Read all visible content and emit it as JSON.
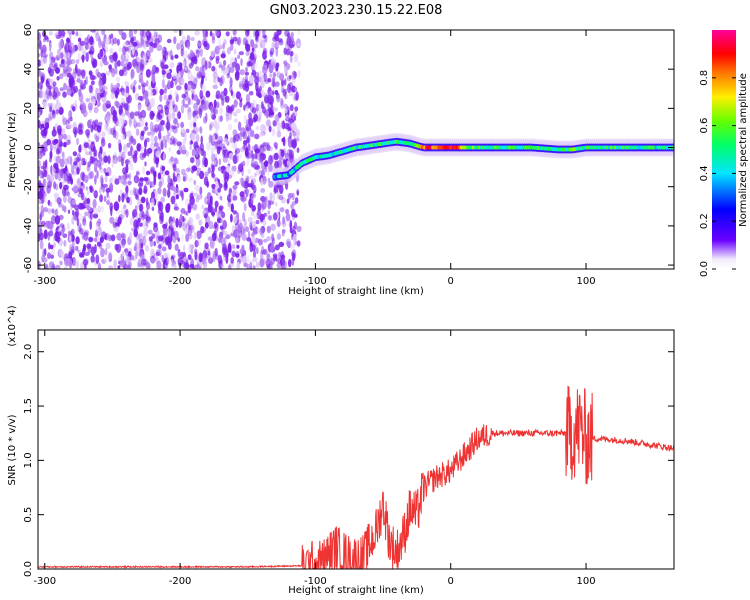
{
  "figure_title": "GN03.2023.230.15.22.E08",
  "colorbar": {
    "label": "Normalized spectral amplitude",
    "ticks": [
      "0.0",
      "0.2",
      "0.4",
      "0.6",
      "0.8"
    ],
    "range": [
      0,
      1
    ]
  },
  "colors": {
    "snr_line": "#ee3333",
    "frame": "#000000"
  },
  "chart_data": [
    {
      "type": "heatmap",
      "title": "",
      "xlabel": "Height of straight line (km)",
      "ylabel": "Frequency (Hz)",
      "xlim": [
        -305,
        165
      ],
      "ylim": [
        -62,
        60
      ],
      "x_ticks": [
        "-300",
        "-200",
        "-100",
        "0",
        "100"
      ],
      "y_ticks": [
        "-60",
        "-40",
        "-20",
        "0",
        "20",
        "40",
        "60"
      ],
      "colormap": "rainbow (violet → blue → cyan → green → yellow → red → magenta)",
      "noise_region": {
        "x_from": -305,
        "x_to": -112,
        "freq_from": -62,
        "freq_to": 60,
        "level": 0.05
      },
      "signal_track": [
        {
          "x": -130,
          "freq": -15,
          "amp": 0.35
        },
        {
          "x": -120,
          "freq": -14,
          "amp": 0.35
        },
        {
          "x": -110,
          "freq": -8,
          "amp": 0.45
        },
        {
          "x": -100,
          "freq": -5,
          "amp": 0.45
        },
        {
          "x": -90,
          "freq": -4,
          "amp": 0.45
        },
        {
          "x": -80,
          "freq": -2,
          "amp": 0.45
        },
        {
          "x": -70,
          "freq": 0,
          "amp": 0.5
        },
        {
          "x": -60,
          "freq": 1,
          "amp": 0.5
        },
        {
          "x": -50,
          "freq": 2,
          "amp": 0.5
        },
        {
          "x": -40,
          "freq": 3,
          "amp": 0.5
        },
        {
          "x": -30,
          "freq": 2,
          "amp": 0.55
        },
        {
          "x": -20,
          "freq": 0,
          "amp": 0.85
        },
        {
          "x": -10,
          "freq": 0,
          "amp": 0.9
        },
        {
          "x": 0,
          "freq": 0,
          "amp": 0.9
        },
        {
          "x": 20,
          "freq": 0,
          "amp": 0.5
        },
        {
          "x": 40,
          "freq": 0,
          "amp": 0.5
        },
        {
          "x": 60,
          "freq": 0,
          "amp": 0.5
        },
        {
          "x": 80,
          "freq": -1,
          "amp": 0.5
        },
        {
          "x": 90,
          "freq": -1,
          "amp": 0.55
        },
        {
          "x": 100,
          "freq": 0,
          "amp": 0.5
        },
        {
          "x": 120,
          "freq": 0,
          "amp": 0.5
        },
        {
          "x": 140,
          "freq": 0,
          "amp": 0.5
        },
        {
          "x": 165,
          "freq": 0,
          "amp": 0.45
        }
      ]
    },
    {
      "type": "line",
      "title": "",
      "xlabel": "Height of straight line (km)",
      "ylabel": "SNR (10 * v/v)",
      "y_multiplier": "(x10^4)",
      "xlim": [
        -305,
        165
      ],
      "ylim": [
        0,
        2.2
      ],
      "x_ticks": [
        "-300",
        "-200",
        "-100",
        "0",
        "100"
      ],
      "y_ticks": [
        "0.0",
        "0.5",
        "1.0",
        "1.5",
        "2.0"
      ],
      "series": [
        {
          "x": [
            -305,
            -250,
            -200,
            -150,
            -110,
            -95,
            -85,
            -75,
            -65,
            -55,
            -50,
            -45,
            -40,
            -35,
            -30,
            -25,
            -20,
            -10,
            0,
            10,
            20,
            30,
            40,
            60,
            80,
            90,
            95,
            100,
            110,
            130,
            150,
            165
          ],
          "y": [
            0.02,
            0.02,
            0.02,
            0.02,
            0.03,
            0.06,
            0.2,
            0.1,
            0.1,
            0.35,
            0.6,
            0.25,
            0.15,
            0.3,
            0.55,
            0.5,
            0.75,
            0.85,
            0.9,
            1.05,
            1.2,
            1.25,
            1.25,
            1.25,
            1.25,
            1.25,
            1.3,
            1.2,
            1.2,
            1.18,
            1.14,
            1.11
          ]
        }
      ]
    }
  ]
}
